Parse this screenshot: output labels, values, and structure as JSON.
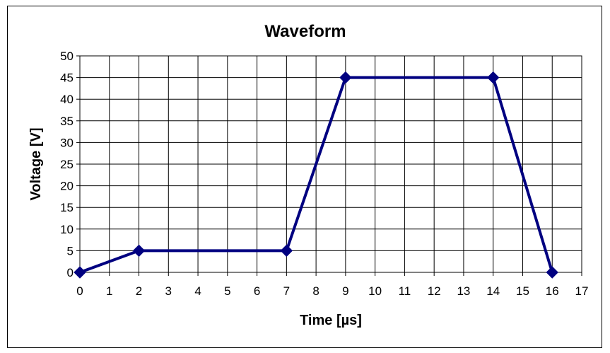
{
  "chart_data": {
    "type": "line",
    "title": "Waveform",
    "xlabel": "Time [µs]",
    "ylabel": "Voltage [V]",
    "xlim": [
      0,
      17
    ],
    "ylim": [
      0,
      50
    ],
    "x_ticks": [
      0,
      1,
      2,
      3,
      4,
      5,
      6,
      7,
      8,
      9,
      10,
      11,
      12,
      13,
      14,
      15,
      16,
      17
    ],
    "y_ticks": [
      0,
      5,
      10,
      15,
      20,
      25,
      30,
      35,
      40,
      45,
      50
    ],
    "grid": true,
    "series": [
      {
        "x": [
          0,
          2,
          7,
          9,
          14,
          16
        ],
        "y": [
          0,
          5,
          5,
          45,
          45,
          0
        ],
        "color": "#000080",
        "marker": "diamond"
      }
    ]
  }
}
